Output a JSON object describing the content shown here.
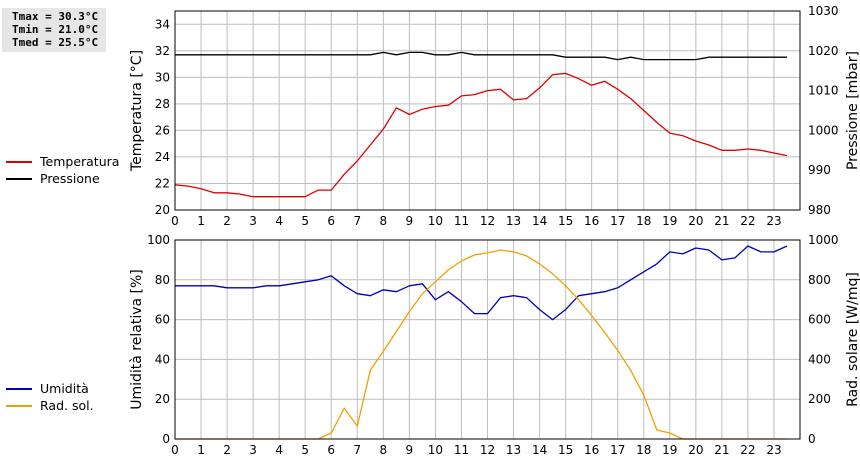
{
  "stats": {
    "tmax": "Tmax = 30.3°C",
    "tmin": "Tmin = 21.0°C",
    "tmed": "Tmed = 25.5°C"
  },
  "colors": {
    "temperature": "#dd0000",
    "pressure": "#000000",
    "humidity": "#0000bb",
    "radiation": "#f0a000"
  },
  "chart_data": [
    {
      "type": "line",
      "ylabel": "Temperatura [°C]",
      "y2label": "Pressione [mbar]",
      "xlim": [
        0,
        24
      ],
      "ylim": [
        20,
        35
      ],
      "y2lim": [
        980,
        1030
      ],
      "xticks": [
        "0",
        "1",
        "2",
        "3",
        "4",
        "5",
        "6",
        "7",
        "8",
        "9",
        "10",
        "11",
        "12",
        "13",
        "14",
        "15",
        "16",
        "17",
        "18",
        "19",
        "20",
        "21",
        "22",
        "23"
      ],
      "yticks": [
        "20",
        "22",
        "24",
        "26",
        "28",
        "30",
        "32",
        "34"
      ],
      "y2ticks": [
        "980",
        "990",
        "1000",
        "1010",
        "1020",
        "1030"
      ],
      "grid": true,
      "legend_position": "left",
      "series": [
        {
          "name": "Temperatura",
          "axis": "left",
          "x": [
            0,
            0.5,
            1,
            1.5,
            2,
            2.5,
            3,
            3.5,
            4,
            4.5,
            5,
            5.5,
            6,
            6.5,
            7,
            7.5,
            8,
            8.5,
            9,
            9.5,
            10,
            10.5,
            11,
            11.5,
            12,
            12.5,
            13,
            13.5,
            14,
            14.5,
            15,
            15.5,
            16,
            16.5,
            17,
            17.5,
            18,
            18.5,
            19,
            19.5,
            20,
            20.5,
            21,
            21.5,
            22,
            22.5,
            23,
            23.5
          ],
          "y": [
            21.9,
            21.8,
            21.6,
            21.3,
            21.3,
            21.2,
            21.0,
            21.0,
            21.0,
            21.0,
            21.0,
            21.5,
            21.5,
            22.7,
            23.7,
            24.9,
            26.1,
            27.7,
            27.2,
            27.6,
            27.8,
            27.9,
            28.6,
            28.7,
            29.0,
            29.1,
            28.3,
            28.4,
            29.2,
            30.2,
            30.3,
            29.9,
            29.4,
            29.7,
            29.1,
            28.4,
            27.5,
            26.6,
            25.8,
            25.6,
            25.2,
            24.9,
            24.5,
            24.5,
            24.6,
            24.5,
            24.3,
            24.1
          ]
        },
        {
          "name": "Pressione",
          "axis": "right",
          "x": [
            0,
            1,
            2,
            3,
            4,
            5,
            6,
            7,
            7.5,
            8,
            8.5,
            9,
            9.5,
            10,
            10.5,
            11,
            11.5,
            12,
            13,
            14,
            14.5,
            15,
            15.5,
            16,
            16.5,
            17,
            17.5,
            18,
            19,
            20,
            20.5,
            21,
            22,
            23,
            23.5
          ],
          "y": [
            1019,
            1019,
            1019,
            1019,
            1019,
            1019,
            1019,
            1019,
            1019,
            1019.6,
            1019,
            1019.6,
            1019.6,
            1019,
            1019,
            1019.6,
            1019,
            1019,
            1019,
            1019,
            1019,
            1018.4,
            1018.4,
            1018.4,
            1018.4,
            1017.8,
            1018.4,
            1017.8,
            1017.8,
            1017.8,
            1018.4,
            1018.4,
            1018.4,
            1018.4,
            1018.4
          ]
        }
      ]
    },
    {
      "type": "line",
      "ylabel": "Umidità relativa [%]",
      "y2label": "Rad. solare [W/mq]",
      "xlim": [
        0,
        24
      ],
      "ylim": [
        0,
        100
      ],
      "y2lim": [
        0,
        1000
      ],
      "xticks": [
        "0",
        "1",
        "2",
        "3",
        "4",
        "5",
        "6",
        "7",
        "8",
        "9",
        "10",
        "11",
        "12",
        "13",
        "14",
        "15",
        "16",
        "17",
        "18",
        "19",
        "20",
        "21",
        "22",
        "23"
      ],
      "yticks": [
        "0",
        "20",
        "40",
        "60",
        "80",
        "100"
      ],
      "y2ticks": [
        "0",
        "200",
        "400",
        "600",
        "800",
        "1000"
      ],
      "grid": true,
      "legend_position": "left",
      "series": [
        {
          "name": "Umidità",
          "axis": "left",
          "x": [
            0,
            0.5,
            1,
            1.5,
            2,
            2.5,
            3,
            3.5,
            4,
            4.5,
            5,
            5.5,
            6,
            6.5,
            7,
            7.5,
            8,
            8.5,
            9,
            9.5,
            10,
            10.5,
            11,
            11.5,
            12,
            12.5,
            13,
            13.5,
            14,
            14.5,
            15,
            15.5,
            16,
            16.5,
            17,
            17.5,
            18,
            18.5,
            19,
            19.5,
            20,
            20.5,
            21,
            21.5,
            22,
            22.5,
            23,
            23.5
          ],
          "y": [
            77,
            77,
            77,
            77,
            76,
            76,
            76,
            77,
            77,
            78,
            79,
            80,
            82,
            77,
            73,
            72,
            75,
            74,
            77,
            78,
            70,
            74,
            69,
            63,
            63,
            71,
            72,
            71,
            65,
            60,
            65,
            72,
            73,
            74,
            76,
            80,
            84,
            88,
            94,
            93,
            96,
            95,
            90,
            91,
            97,
            94,
            94,
            97
          ]
        },
        {
          "name": "Rad. sol.",
          "axis": "right",
          "x": [
            0,
            0.5,
            1,
            1.5,
            2,
            2.5,
            3,
            3.5,
            4,
            4.5,
            5,
            5.5,
            6,
            6.5,
            7,
            7.5,
            8,
            8.5,
            9,
            9.5,
            10,
            10.5,
            11,
            11.5,
            12,
            12.5,
            13,
            13.5,
            14,
            14.5,
            15,
            15.5,
            16,
            16.5,
            17,
            17.5,
            18,
            18.5,
            19,
            19.5,
            20,
            20.5,
            21,
            21.5,
            22,
            22.5,
            23,
            23.5
          ],
          "y": [
            0,
            0,
            0,
            0,
            0,
            0,
            0,
            0,
            0,
            0,
            0,
            0,
            30,
            155,
            65,
            345,
            440,
            540,
            640,
            730,
            790,
            850,
            895,
            925,
            935,
            950,
            940,
            920,
            880,
            830,
            770,
            700,
            620,
            535,
            445,
            345,
            220,
            45,
            30,
            0,
            0,
            0,
            0,
            0,
            0,
            0,
            0,
            0
          ]
        }
      ]
    }
  ]
}
